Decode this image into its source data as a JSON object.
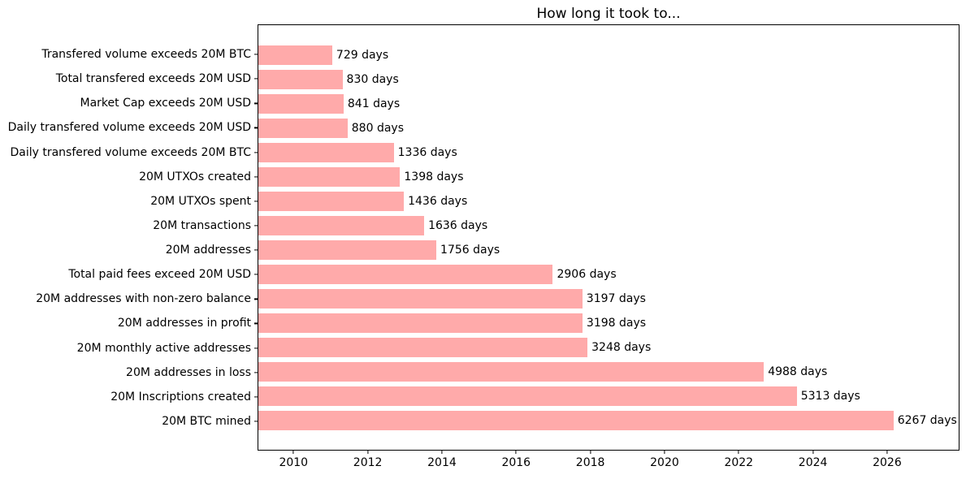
{
  "figure": {
    "background": "#ffffff"
  },
  "chart_data": {
    "type": "bar",
    "orientation": "horizontal",
    "title": "How long it took to...",
    "xlabel": "",
    "ylabel": "",
    "grid": false,
    "legend": null,
    "bar_color": "#ffaaaa",
    "value_label_suffix": " days",
    "categories": [
      "Transfered volume exceeds 20M BTC",
      "Total transfered exceeds 20M USD",
      "Market Cap exceeds 20M USD",
      "Daily transfered volume exceeds 20M USD",
      "Daily transfered volume exceeds 20M BTC",
      "20M UTXOs created",
      "20M UTXOs spent",
      "20M transactions",
      "20M addresses",
      "Total paid fees exceed 20M USD",
      "20M addresses with non-zero balance",
      "20M addresses in profit",
      "20M monthly active addresses",
      "20M addresses in loss",
      "20M Inscriptions created",
      "20M BTC mined"
    ],
    "values": [
      729,
      830,
      841,
      880,
      1336,
      1398,
      1436,
      1636,
      1756,
      2906,
      3197,
      3198,
      3248,
      4988,
      5313,
      6267
    ],
    "value_labels": [
      "729 days",
      "830 days",
      "841 days",
      "880 days",
      "1336 days",
      "1398 days",
      "1436 days",
      "1636 days",
      "1756 days",
      "2906 days",
      "3197 days",
      "3198 days",
      "3248 days",
      "4988 days",
      "5313 days",
      "6267 days"
    ],
    "x_ticks": [
      2010,
      2012,
      2014,
      2016,
      2018,
      2020,
      2022,
      2024,
      2026
    ],
    "x_axis_range": {
      "start_year": 2009.03,
      "end_year": 2027.95,
      "bars_start_at_axis_start": true
    }
  }
}
